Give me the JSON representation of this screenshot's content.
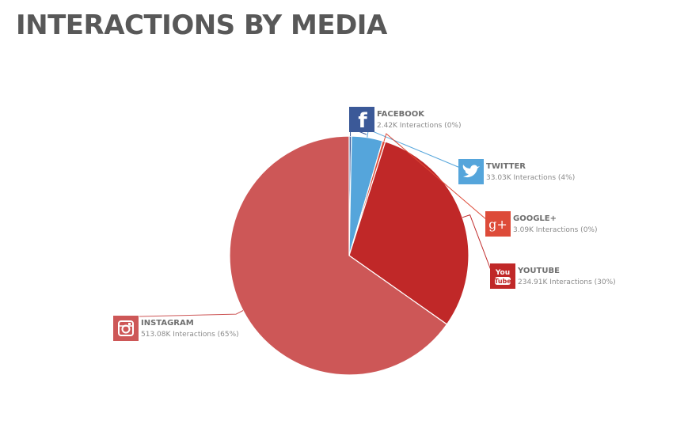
{
  "title": "INTERACTIONS BY MEDIA",
  "chart_data": {
    "type": "pie",
    "title": "INTERACTIONS BY MEDIA",
    "slices": [
      {
        "name": "FACEBOOK",
        "value": 2.42,
        "value_label": "2.42K Interactions (0%)",
        "color": "#3b5998",
        "icon": "facebook-icon",
        "icon_text": "f"
      },
      {
        "name": "TWITTER",
        "value": 33.03,
        "value_label": "33.03K Interactions (4%)",
        "color": "#55a5db",
        "icon": "twitter-icon",
        "icon_text": ""
      },
      {
        "name": "GOOGLE+",
        "value": 3.09,
        "value_label": "3.09K Interactions (0%)",
        "color": "#dd4b39",
        "icon": "google-plus-icon",
        "icon_text": "g+"
      },
      {
        "name": "YOUTUBE",
        "value": 234.91,
        "value_label": "234.91K Interactions (30%)",
        "color": "#c02828",
        "icon": "youtube-icon",
        "icon_text": "You Tube"
      },
      {
        "name": "INSTAGRAM",
        "value": 513.08,
        "value_label": "513.08K Interactions (65%)",
        "color": "#cd5757",
        "icon": "instagram-icon",
        "icon_text": ""
      }
    ],
    "unit": "K Interactions"
  }
}
